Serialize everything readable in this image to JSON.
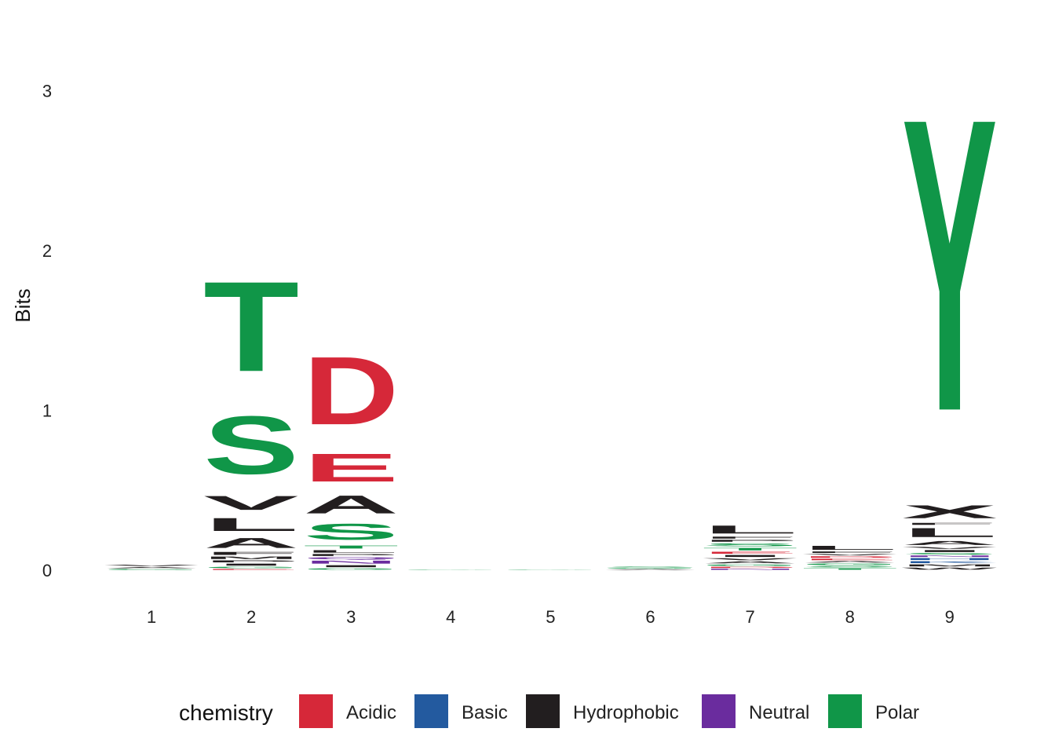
{
  "chart_data": {
    "type": "sequence-logo",
    "ylabel": "Bits",
    "ylim": [
      0,
      3.4
    ],
    "y_ticks": [
      0,
      1,
      2,
      3
    ],
    "positions": [
      "1",
      "2",
      "3",
      "4",
      "5",
      "6",
      "7",
      "8",
      "9"
    ],
    "stacks": [
      [
        {
          "letter": "G",
          "class": "Polar",
          "bits": 0.01
        },
        {
          "letter": "A",
          "class": "Hydrophobic",
          "bits": 0.012
        },
        {
          "letter": "V",
          "class": "Hydrophobic",
          "bits": 0.015
        }
      ],
      [
        {
          "letter": "E",
          "class": "Acidic",
          "bits": 0.01
        },
        {
          "letter": "G",
          "class": "Polar",
          "bits": 0.015
        },
        {
          "letter": "I",
          "class": "Hydrophobic",
          "bits": 0.02
        },
        {
          "letter": "P",
          "class": "Hydrophobic",
          "bits": 0.02
        },
        {
          "letter": "M",
          "class": "Hydrophobic",
          "bits": 0.025
        },
        {
          "letter": "F",
          "class": "Hydrophobic",
          "bits": 0.03
        },
        {
          "letter": "A",
          "class": "Hydrophobic",
          "bits": 0.1
        },
        {
          "letter": "L",
          "class": "Hydrophobic",
          "bits": 0.13
        },
        {
          "letter": "V",
          "class": "Hydrophobic",
          "bits": 0.14
        },
        {
          "letter": "S",
          "class": "Polar",
          "bits": 0.58
        },
        {
          "letter": "T",
          "class": "Polar",
          "bits": 0.9
        }
      ],
      [
        {
          "letter": "G",
          "class": "Polar",
          "bits": 0.015
        },
        {
          "letter": "I",
          "class": "Hydrophobic",
          "bits": 0.02
        },
        {
          "letter": "N",
          "class": "Neutral",
          "bits": 0.03
        },
        {
          "letter": "Q",
          "class": "Neutral",
          "bits": 0.02
        },
        {
          "letter": "P",
          "class": "Hydrophobic",
          "bits": 0.02
        },
        {
          "letter": "L",
          "class": "Hydrophobic",
          "bits": 0.025
        },
        {
          "letter": "T",
          "class": "Polar",
          "bits": 0.03
        },
        {
          "letter": "S",
          "class": "Polar",
          "bits": 0.16
        },
        {
          "letter": "A",
          "class": "Hydrophobic",
          "bits": 0.18
        },
        {
          "letter": "E",
          "class": "Acidic",
          "bits": 0.28
        },
        {
          "letter": "D",
          "class": "Acidic",
          "bits": 0.68
        }
      ],
      [
        {
          "letter": "G",
          "class": "Polar",
          "bits": 0.004
        }
      ],
      [
        {
          "letter": "G",
          "class": "Polar",
          "bits": 0.004
        }
      ],
      [
        {
          "letter": "A",
          "class": "Hydrophobic",
          "bits": 0.008
        },
        {
          "letter": "G",
          "class": "Polar",
          "bits": 0.008
        },
        {
          "letter": "S",
          "class": "Polar",
          "bits": 0.008
        }
      ],
      [
        {
          "letter": "N",
          "class": "Neutral",
          "bits": 0.012
        },
        {
          "letter": "D",
          "class": "Acidic",
          "bits": 0.012
        },
        {
          "letter": "G",
          "class": "Polar",
          "bits": 0.015
        },
        {
          "letter": "A",
          "class": "Hydrophobic",
          "bits": 0.02
        },
        {
          "letter": "V",
          "class": "Hydrophobic",
          "bits": 0.02
        },
        {
          "letter": "I",
          "class": "Hydrophobic",
          "bits": 0.02
        },
        {
          "letter": "E",
          "class": "Acidic",
          "bits": 0.02
        },
        {
          "letter": "T",
          "class": "Polar",
          "bits": 0.025
        },
        {
          "letter": "S",
          "class": "Polar",
          "bits": 0.03
        },
        {
          "letter": "P",
          "class": "Hydrophobic",
          "bits": 0.02
        },
        {
          "letter": "F",
          "class": "Hydrophobic",
          "bits": 0.02
        },
        {
          "letter": "L",
          "class": "Hydrophobic",
          "bits": 0.08
        }
      ],
      [
        {
          "letter": "T",
          "class": "Polar",
          "bits": 0.015
        },
        {
          "letter": "S",
          "class": "Polar",
          "bits": 0.015
        },
        {
          "letter": "G",
          "class": "Polar",
          "bits": 0.015
        },
        {
          "letter": "A",
          "class": "Hydrophobic",
          "bits": 0.015
        },
        {
          "letter": "E",
          "class": "Acidic",
          "bits": 0.015
        },
        {
          "letter": "D",
          "class": "Acidic",
          "bits": 0.015
        },
        {
          "letter": "V",
          "class": "Hydrophobic",
          "bits": 0.015
        },
        {
          "letter": "F",
          "class": "Hydrophobic",
          "bits": 0.015
        },
        {
          "letter": "L",
          "class": "Hydrophobic",
          "bits": 0.04
        }
      ],
      [
        {
          "letter": "W",
          "class": "Hydrophobic",
          "bits": 0.02
        },
        {
          "letter": "M",
          "class": "Hydrophobic",
          "bits": 0.02
        },
        {
          "letter": "K",
          "class": "Basic",
          "bits": 0.02
        },
        {
          "letter": "H",
          "class": "Basic",
          "bits": 0.02
        },
        {
          "letter": "N",
          "class": "Neutral",
          "bits": 0.015
        },
        {
          "letter": "S",
          "class": "Polar",
          "bits": 0.015
        },
        {
          "letter": "I",
          "class": "Hydrophobic",
          "bits": 0.02
        },
        {
          "letter": "V",
          "class": "Hydrophobic",
          "bits": 0.02
        },
        {
          "letter": "A",
          "class": "Hydrophobic",
          "bits": 0.04
        },
        {
          "letter": "L",
          "class": "Hydrophobic",
          "bits": 0.09
        },
        {
          "letter": "F",
          "class": "Hydrophobic",
          "bits": 0.02
        },
        {
          "letter": "X",
          "class": "Hydrophobic",
          "bits": 0.13
        },
        {
          "letter": "Y",
          "class": "Polar",
          "bits": 2.93
        }
      ]
    ],
    "legend": {
      "title": "chemistry",
      "position": "bottom",
      "items": [
        {
          "label": "Acidic",
          "color": "#D62839"
        },
        {
          "label": "Basic",
          "color": "#235A9F"
        },
        {
          "label": "Hydrophobic",
          "color": "#221E1F"
        },
        {
          "label": "Neutral",
          "color": "#6A2C9E"
        },
        {
          "label": "Polar",
          "color": "#109648"
        }
      ]
    }
  }
}
